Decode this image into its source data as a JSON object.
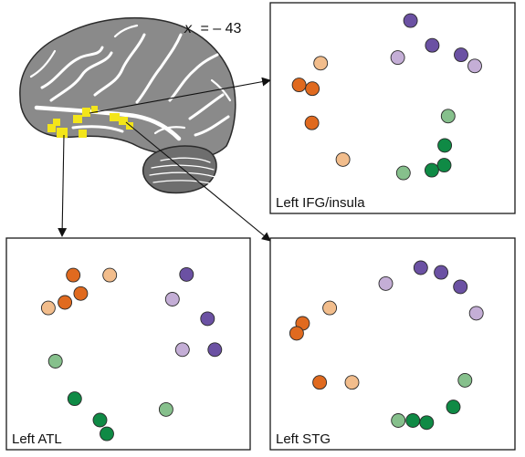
{
  "slice": {
    "axis": "x",
    "value": "= – 43"
  },
  "colors": {
    "dark_orange": "#e06a1f",
    "light_orange": "#f2bd8c",
    "dark_purple": "#6b51a3",
    "light_purple": "#c4aed6",
    "dark_green": "#0f8a45",
    "light_green": "#86c08c",
    "roi": "#f3e51a",
    "brain_fill": "#8a8a8a",
    "cerebellum_fill": "#6e6e6e"
  },
  "panels": [
    {
      "id": "ifg",
      "label": "Left IFG/insula",
      "points": [
        [
          "dark_purple",
          0.573,
          0.085
        ],
        [
          "dark_purple",
          0.662,
          0.202
        ],
        [
          "dark_purple",
          0.78,
          0.247
        ],
        [
          "light_purple",
          0.521,
          0.26
        ],
        [
          "light_purple",
          0.836,
          0.3
        ],
        [
          "light_orange",
          0.206,
          0.287
        ],
        [
          "dark_orange",
          0.118,
          0.39
        ],
        [
          "dark_orange",
          0.172,
          0.408
        ],
        [
          "dark_orange",
          0.17,
          0.57
        ],
        [
          "light_orange",
          0.297,
          0.744
        ],
        [
          "light_green",
          0.727,
          0.538
        ],
        [
          "dark_green",
          0.713,
          0.677
        ],
        [
          "dark_green",
          0.711,
          0.771
        ],
        [
          "dark_green",
          0.66,
          0.795
        ],
        [
          "light_green",
          0.544,
          0.808
        ]
      ]
    },
    {
      "id": "atl",
      "label": "Left ATL",
      "points": [
        [
          "dark_orange",
          0.274,
          0.175
        ],
        [
          "light_orange",
          0.424,
          0.175
        ],
        [
          "dark_orange",
          0.305,
          0.262
        ],
        [
          "dark_orange",
          0.24,
          0.304
        ],
        [
          "light_orange",
          0.172,
          0.33
        ],
        [
          "dark_purple",
          0.739,
          0.172
        ],
        [
          "light_purple",
          0.681,
          0.289
        ],
        [
          "dark_purple",
          0.825,
          0.381
        ],
        [
          "light_purple",
          0.722,
          0.527
        ],
        [
          "dark_purple",
          0.855,
          0.527
        ],
        [
          "light_green",
          0.201,
          0.582
        ],
        [
          "dark_green",
          0.28,
          0.759
        ],
        [
          "light_green",
          0.655,
          0.81
        ],
        [
          "dark_green",
          0.384,
          0.86
        ],
        [
          "dark_green",
          0.412,
          0.925
        ]
      ]
    },
    {
      "id": "stg",
      "label": "Left STG",
      "points": [
        [
          "dark_purple",
          0.615,
          0.14
        ],
        [
          "dark_purple",
          0.698,
          0.162
        ],
        [
          "dark_purple",
          0.777,
          0.23
        ],
        [
          "light_purple",
          0.472,
          0.215
        ],
        [
          "light_purple",
          0.842,
          0.355
        ],
        [
          "light_orange",
          0.243,
          0.33
        ],
        [
          "dark_orange",
          0.132,
          0.403
        ],
        [
          "dark_orange",
          0.108,
          0.45
        ],
        [
          "dark_orange",
          0.202,
          0.682
        ],
        [
          "light_orange",
          0.334,
          0.682
        ],
        [
          "light_green",
          0.796,
          0.672
        ],
        [
          "dark_green",
          0.748,
          0.798
        ],
        [
          "light_green",
          0.523,
          0.862
        ],
        [
          "dark_green",
          0.583,
          0.862
        ],
        [
          "dark_green",
          0.639,
          0.872
        ]
      ]
    }
  ]
}
